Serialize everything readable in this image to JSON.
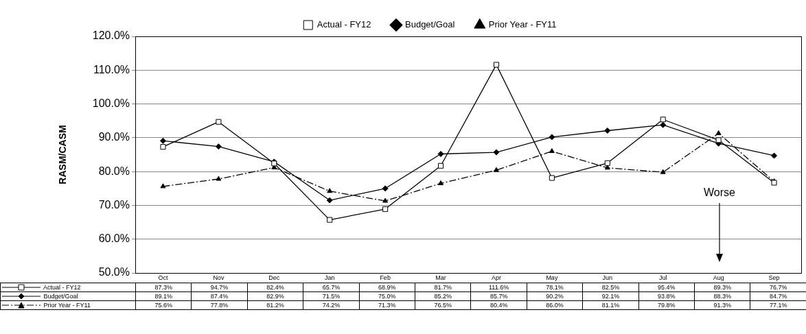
{
  "chart_data": {
    "type": "line",
    "ylabel": "RASM/CASM",
    "categories": [
      "Oct",
      "Nov",
      "Dec",
      "Jan",
      "Feb",
      "Mar",
      "Apr",
      "May",
      "Jun",
      "Jul",
      "Aug",
      "Sep"
    ],
    "series": [
      {
        "name": "Actual - FY12",
        "color": "#000000",
        "marker": "square",
        "line_style": "solid",
        "values": [
          87.3,
          94.7,
          82.4,
          65.7,
          68.9,
          81.7,
          111.6,
          78.1,
          82.5,
          95.4,
          89.3,
          76.7
        ],
        "value_labels": [
          "87.3%",
          "94.7%",
          "82.4%",
          "65.7%",
          "68.9%",
          "81.7%",
          "111.6%",
          "78.1%",
          "82.5%",
          "95.4%",
          "89.3%",
          "76.7%"
        ]
      },
      {
        "name": "Budget/Goal",
        "color": "#000000",
        "marker": "diamond",
        "line_style": "solid",
        "values": [
          89.1,
          87.4,
          82.9,
          71.5,
          75.0,
          85.2,
          85.7,
          90.2,
          92.1,
          93.8,
          88.3,
          84.7
        ],
        "value_labels": [
          "89.1%",
          "87.4%",
          "82.9%",
          "71.5%",
          "75.0%",
          "85.2%",
          "85.7%",
          "90.2%",
          "92.1%",
          "93.8%",
          "88.3%",
          "84.7%"
        ]
      },
      {
        "name": "Prior Year - FY11",
        "color": "#000000",
        "marker": "triangle",
        "line_style": "dashed",
        "values": [
          75.6,
          77.8,
          81.2,
          74.2,
          71.3,
          76.5,
          80.4,
          86.0,
          81.1,
          79.8,
          91.3,
          77.1
        ],
        "value_labels": [
          "75.6%",
          "77.8%",
          "81.2%",
          "74.2%",
          "71.3%",
          "76.5%",
          "80.4%",
          "86.0%",
          "81.1%",
          "79.8%",
          "91.3%",
          "77.1%"
        ]
      }
    ],
    "ylim": [
      50,
      120
    ],
    "yticks": [
      {
        "value": 50,
        "label": "50.0%"
      },
      {
        "value": 60,
        "label": "60.0%"
      },
      {
        "value": 70,
        "label": "70.0%"
      },
      {
        "value": 80,
        "label": "80.0%"
      },
      {
        "value": 90,
        "label": "90.0%"
      },
      {
        "value": 100,
        "label": "100.0%"
      },
      {
        "value": 110,
        "label": "110.0%"
      },
      {
        "value": 120,
        "label": "120.0%"
      }
    ],
    "grid": "y",
    "legend": "top",
    "annotations": [
      "Worse"
    ]
  }
}
